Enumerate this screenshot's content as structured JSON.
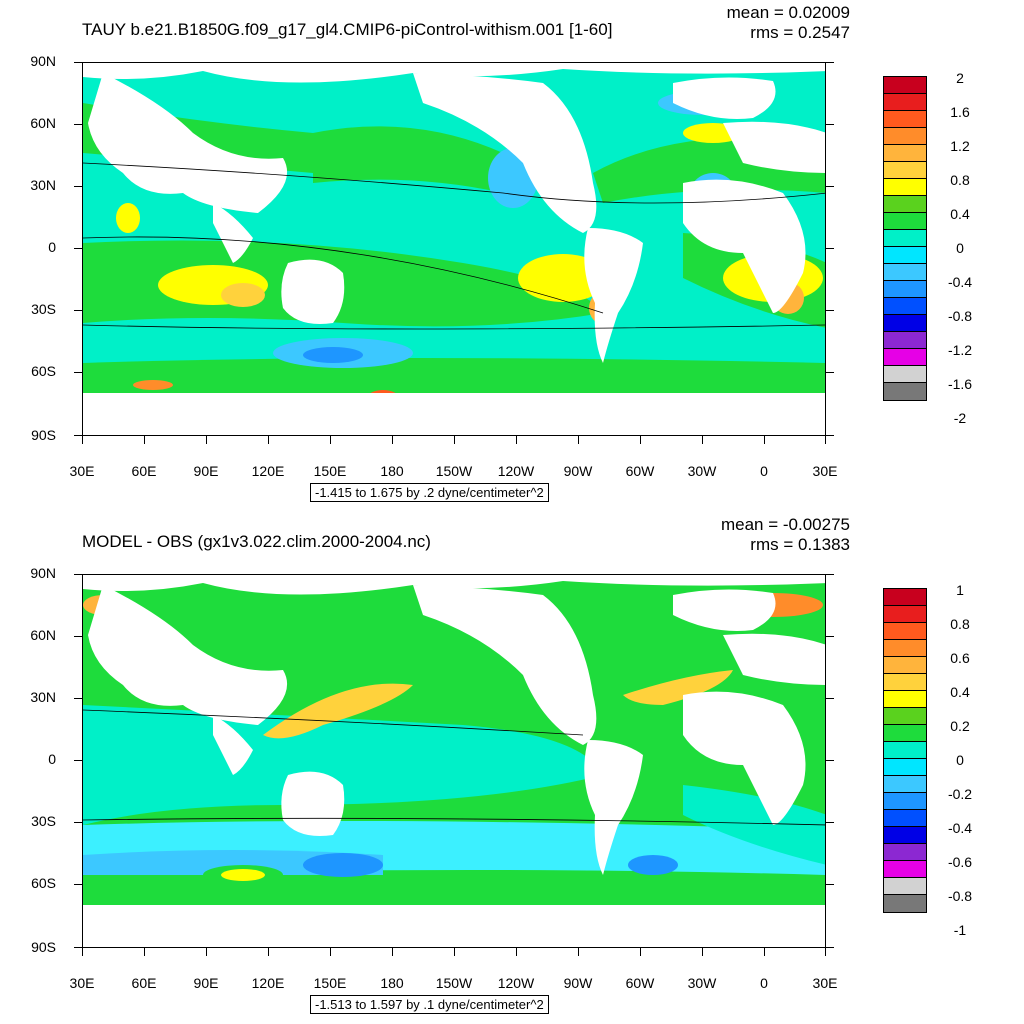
{
  "panels": [
    {
      "title": "TAUY b.e21.B1850G.f09_g17_gl4.CMIP6-piControl-withism.001 [1-60]",
      "mean": "mean = 0.02009",
      "rms": "rms = 0.2547",
      "range_info": "-1.415 to 1.675 by .2 dyne/centimeter^2",
      "legend_labels": [
        "2",
        "1.6",
        "1.2",
        "0.8",
        "0.4",
        "0",
        "-0.4",
        "-0.8",
        "-1.2",
        "-1.6",
        "-2"
      ],
      "legend_colors": [
        "#c8001e",
        "#e81e1e",
        "#ff5a1e",
        "#ff8c2a",
        "#ffb43c",
        "#ffd23c",
        "#ffff00",
        "#5ad21e",
        "#1edc3c",
        "#00f0c8",
        "#00e6ff",
        "#3cc8ff",
        "#1e96ff",
        "#0050ff",
        "#0000e6",
        "#8c28d2",
        "#e600e6",
        "#d2d2d2",
        "#787878"
      ]
    },
    {
      "title": "MODEL - OBS (gx1v3.022.clim.2000-2004.nc)",
      "mean": "mean = -0.00275",
      "rms": "rms = 0.1383",
      "range_info": "-1.513 to 1.597 by .1 dyne/centimeter^2",
      "legend_labels": [
        "1",
        "0.8",
        "0.6",
        "0.4",
        "0.2",
        "0",
        "-0.2",
        "-0.4",
        "-0.6",
        "-0.8",
        "-1"
      ],
      "legend_colors": [
        "#c8001e",
        "#e81e1e",
        "#ff5a1e",
        "#ff8c2a",
        "#ffb43c",
        "#ffd23c",
        "#ffff00",
        "#5ad21e",
        "#1edc3c",
        "#00f0c8",
        "#00e6ff",
        "#3cc8ff",
        "#1e96ff",
        "#0050ff",
        "#0000e6",
        "#8c28d2",
        "#e600e6",
        "#d2d2d2",
        "#787878"
      ]
    }
  ],
  "lat_labels": [
    "90N",
    "60N",
    "30N",
    "0",
    "30S",
    "60S",
    "90S"
  ],
  "lon_labels": [
    "30E",
    "60E",
    "90E",
    "120E",
    "150E",
    "180",
    "150W",
    "120W",
    "90W",
    "60W",
    "30W",
    "0",
    "30E"
  ],
  "colors": {
    "ocean_base": "#1edc3c",
    "land": "#ffffff",
    "cyan": "#00f0c8",
    "light_cyan": "#3cf0ff",
    "yellow": "#ffff00",
    "orange": "#ffb43c",
    "blue": "#3cc8ff"
  }
}
